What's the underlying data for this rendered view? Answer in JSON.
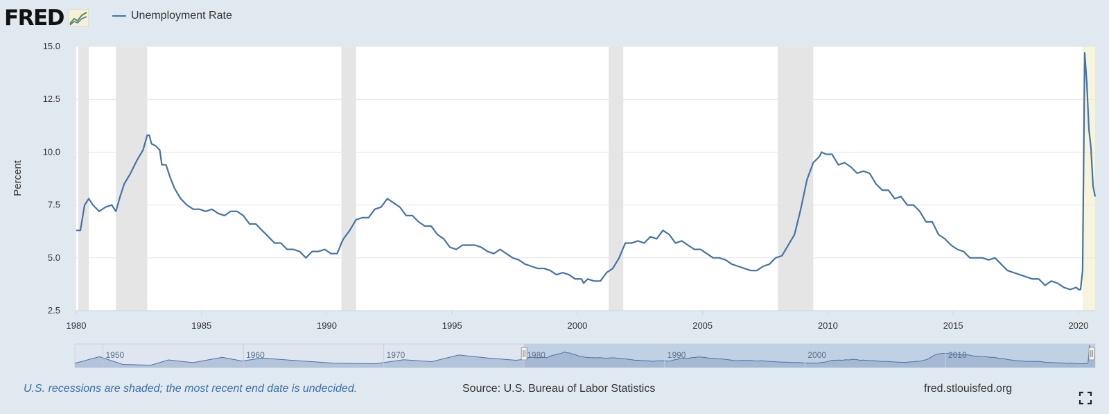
{
  "header": {
    "logo_text": "FRED",
    "logo_icon": "fred-chart-icon",
    "legend_label": "Unemployment Rate"
  },
  "colors": {
    "line": "#4572a7",
    "recession": "#e5e5e5",
    "background": "#e1e9f0",
    "plot": "#ffffff",
    "highlight": "#f6f5dc",
    "note": "#3d6ea5"
  },
  "footer": {
    "note": "U.S. recessions are shaded; the most recent end date is undecided.",
    "source": "Source: U.S. Bureau of Labor Statistics",
    "site": "fred.stlouisfed.org",
    "fullscreen_icon": "fullscreen-icon"
  },
  "chart_data": {
    "type": "line",
    "title": "",
    "xlabel": "",
    "ylabel": "Percent",
    "ylim": [
      2.5,
      15.0
    ],
    "xlim": [
      "1980-01",
      "2020-09"
    ],
    "y_ticks": [
      "2.5",
      "5.0",
      "7.5",
      "10.0",
      "12.5",
      "15.0"
    ],
    "x_ticks": [
      "1980",
      "1985",
      "1990",
      "1995",
      "2000",
      "2005",
      "2010",
      "2015",
      "2020"
    ],
    "grid": true,
    "legend": "top-left",
    "recessions": [
      {
        "start": "1980-02",
        "end": "1980-07"
      },
      {
        "start": "1981-08",
        "end": "1982-11"
      },
      {
        "start": "1990-08",
        "end": "1991-03"
      },
      {
        "start": "2001-04",
        "end": "2001-11"
      },
      {
        "start": "2008-01",
        "end": "2009-06"
      },
      {
        "start": "2020-03",
        "end": "2020-09"
      }
    ],
    "navigator": {
      "x_ticks": [
        "1950",
        "1960",
        "1970",
        "1980",
        "1990",
        "2000",
        "2010"
      ],
      "range_start": "1948-01",
      "range_end": "2020-09",
      "selected_start": "1980-01",
      "selected_end": "2020-09"
    },
    "series": [
      {
        "name": "Unemployment Rate",
        "points": [
          [
            "1980-01",
            6.3
          ],
          [
            "1980-03",
            6.3
          ],
          [
            "1980-04",
            6.9
          ],
          [
            "1980-05",
            7.5
          ],
          [
            "1980-07",
            7.8
          ],
          [
            "1980-09",
            7.5
          ],
          [
            "1980-12",
            7.2
          ],
          [
            "1981-03",
            7.4
          ],
          [
            "1981-06",
            7.5
          ],
          [
            "1981-08",
            7.2
          ],
          [
            "1981-10",
            7.9
          ],
          [
            "1981-12",
            8.5
          ],
          [
            "1982-03",
            9.0
          ],
          [
            "1982-06",
            9.6
          ],
          [
            "1982-09",
            10.1
          ],
          [
            "1982-11",
            10.8
          ],
          [
            "1982-12",
            10.8
          ],
          [
            "1983-01",
            10.4
          ],
          [
            "1983-03",
            10.3
          ],
          [
            "1983-05",
            10.1
          ],
          [
            "1983-06",
            9.4
          ],
          [
            "1983-08",
            9.4
          ],
          [
            "1983-10",
            8.8
          ],
          [
            "1983-12",
            8.3
          ],
          [
            "1984-03",
            7.8
          ],
          [
            "1984-06",
            7.5
          ],
          [
            "1984-09",
            7.3
          ],
          [
            "1984-12",
            7.3
          ],
          [
            "1985-03",
            7.2
          ],
          [
            "1985-06",
            7.3
          ],
          [
            "1985-09",
            7.1
          ],
          [
            "1985-12",
            7.0
          ],
          [
            "1986-03",
            7.2
          ],
          [
            "1986-06",
            7.2
          ],
          [
            "1986-09",
            7.0
          ],
          [
            "1986-12",
            6.6
          ],
          [
            "1987-03",
            6.6
          ],
          [
            "1987-06",
            6.3
          ],
          [
            "1987-09",
            6.0
          ],
          [
            "1987-12",
            5.7
          ],
          [
            "1988-03",
            5.7
          ],
          [
            "1988-06",
            5.4
          ],
          [
            "1988-09",
            5.4
          ],
          [
            "1988-12",
            5.3
          ],
          [
            "1989-03",
            5.0
          ],
          [
            "1989-06",
            5.3
          ],
          [
            "1989-09",
            5.3
          ],
          [
            "1989-12",
            5.4
          ],
          [
            "1990-03",
            5.2
          ],
          [
            "1990-06",
            5.2
          ],
          [
            "1990-08",
            5.7
          ],
          [
            "1990-09",
            5.9
          ],
          [
            "1990-12",
            6.3
          ],
          [
            "1991-03",
            6.8
          ],
          [
            "1991-06",
            6.9
          ],
          [
            "1991-09",
            6.9
          ],
          [
            "1991-12",
            7.3
          ],
          [
            "1992-03",
            7.4
          ],
          [
            "1992-06",
            7.8
          ],
          [
            "1992-09",
            7.6
          ],
          [
            "1992-12",
            7.4
          ],
          [
            "1993-03",
            7.0
          ],
          [
            "1993-06",
            7.0
          ],
          [
            "1993-09",
            6.7
          ],
          [
            "1993-12",
            6.5
          ],
          [
            "1994-03",
            6.5
          ],
          [
            "1994-06",
            6.1
          ],
          [
            "1994-09",
            5.9
          ],
          [
            "1994-12",
            5.5
          ],
          [
            "1995-03",
            5.4
          ],
          [
            "1995-06",
            5.6
          ],
          [
            "1995-09",
            5.6
          ],
          [
            "1995-12",
            5.6
          ],
          [
            "1996-03",
            5.5
          ],
          [
            "1996-06",
            5.3
          ],
          [
            "1996-09",
            5.2
          ],
          [
            "1996-12",
            5.4
          ],
          [
            "1997-03",
            5.2
          ],
          [
            "1997-06",
            5.0
          ],
          [
            "1997-09",
            4.9
          ],
          [
            "1997-12",
            4.7
          ],
          [
            "1998-03",
            4.6
          ],
          [
            "1998-06",
            4.5
          ],
          [
            "1998-09",
            4.5
          ],
          [
            "1998-12",
            4.4
          ],
          [
            "1999-03",
            4.2
          ],
          [
            "1999-06",
            4.3
          ],
          [
            "1999-09",
            4.2
          ],
          [
            "1999-12",
            4.0
          ],
          [
            "2000-03",
            4.0
          ],
          [
            "2000-04",
            3.8
          ],
          [
            "2000-06",
            4.0
          ],
          [
            "2000-09",
            3.9
          ],
          [
            "2000-12",
            3.9
          ],
          [
            "2001-03",
            4.3
          ],
          [
            "2001-06",
            4.5
          ],
          [
            "2001-09",
            5.0
          ],
          [
            "2001-12",
            5.7
          ],
          [
            "2002-03",
            5.7
          ],
          [
            "2002-06",
            5.8
          ],
          [
            "2002-09",
            5.7
          ],
          [
            "2002-12",
            6.0
          ],
          [
            "2003-03",
            5.9
          ],
          [
            "2003-06",
            6.3
          ],
          [
            "2003-09",
            6.1
          ],
          [
            "2003-12",
            5.7
          ],
          [
            "2004-03",
            5.8
          ],
          [
            "2004-06",
            5.6
          ],
          [
            "2004-09",
            5.4
          ],
          [
            "2004-12",
            5.4
          ],
          [
            "2005-03",
            5.2
          ],
          [
            "2005-06",
            5.0
          ],
          [
            "2005-09",
            5.0
          ],
          [
            "2005-12",
            4.9
          ],
          [
            "2006-03",
            4.7
          ],
          [
            "2006-06",
            4.6
          ],
          [
            "2006-09",
            4.5
          ],
          [
            "2006-12",
            4.4
          ],
          [
            "2007-03",
            4.4
          ],
          [
            "2007-06",
            4.6
          ],
          [
            "2007-09",
            4.7
          ],
          [
            "2007-12",
            5.0
          ],
          [
            "2008-03",
            5.1
          ],
          [
            "2008-06",
            5.6
          ],
          [
            "2008-09",
            6.1
          ],
          [
            "2008-12",
            7.3
          ],
          [
            "2009-03",
            8.7
          ],
          [
            "2009-06",
            9.5
          ],
          [
            "2009-09",
            9.8
          ],
          [
            "2009-10",
            10.0
          ],
          [
            "2009-12",
            9.9
          ],
          [
            "2010-03",
            9.9
          ],
          [
            "2010-06",
            9.4
          ],
          [
            "2010-09",
            9.5
          ],
          [
            "2010-12",
            9.3
          ],
          [
            "2011-03",
            9.0
          ],
          [
            "2011-06",
            9.1
          ],
          [
            "2011-09",
            9.0
          ],
          [
            "2011-12",
            8.5
          ],
          [
            "2012-03",
            8.2
          ],
          [
            "2012-06",
            8.2
          ],
          [
            "2012-09",
            7.8
          ],
          [
            "2012-12",
            7.9
          ],
          [
            "2013-03",
            7.5
          ],
          [
            "2013-06",
            7.5
          ],
          [
            "2013-09",
            7.2
          ],
          [
            "2013-12",
            6.7
          ],
          [
            "2014-03",
            6.7
          ],
          [
            "2014-06",
            6.1
          ],
          [
            "2014-09",
            5.9
          ],
          [
            "2014-12",
            5.6
          ],
          [
            "2015-03",
            5.4
          ],
          [
            "2015-06",
            5.3
          ],
          [
            "2015-09",
            5.0
          ],
          [
            "2015-12",
            5.0
          ],
          [
            "2016-03",
            5.0
          ],
          [
            "2016-06",
            4.9
          ],
          [
            "2016-09",
            5.0
          ],
          [
            "2016-12",
            4.7
          ],
          [
            "2017-03",
            4.4
          ],
          [
            "2017-06",
            4.3
          ],
          [
            "2017-09",
            4.2
          ],
          [
            "2017-12",
            4.1
          ],
          [
            "2018-03",
            4.0
          ],
          [
            "2018-06",
            4.0
          ],
          [
            "2018-09",
            3.7
          ],
          [
            "2018-12",
            3.9
          ],
          [
            "2019-03",
            3.8
          ],
          [
            "2019-06",
            3.6
          ],
          [
            "2019-09",
            3.5
          ],
          [
            "2019-12",
            3.6
          ],
          [
            "2020-01",
            3.5
          ],
          [
            "2020-02",
            3.5
          ],
          [
            "2020-03",
            4.4
          ],
          [
            "2020-04",
            14.7
          ],
          [
            "2020-05",
            13.3
          ],
          [
            "2020-06",
            11.1
          ],
          [
            "2020-07",
            10.2
          ],
          [
            "2020-08",
            8.4
          ],
          [
            "2020-09",
            7.9
          ]
        ]
      }
    ]
  }
}
